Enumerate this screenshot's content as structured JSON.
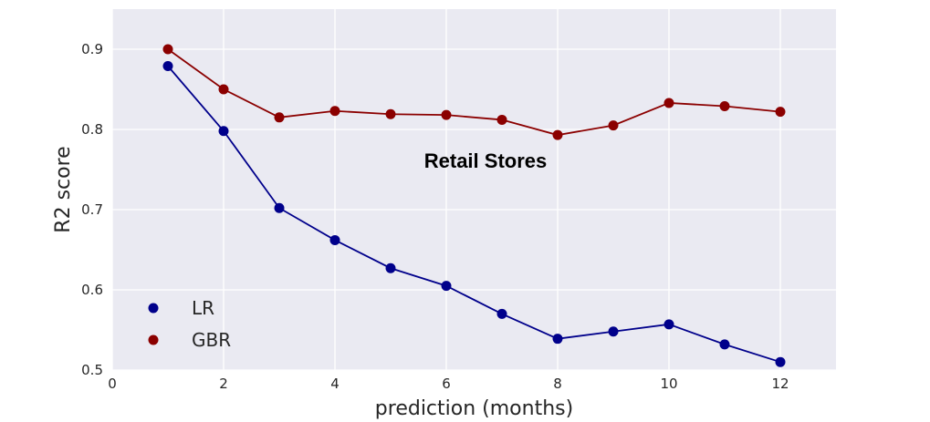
{
  "chart_data": {
    "type": "line",
    "title": "",
    "annotation": "Retail Stores",
    "xlabel": "prediction (months)",
    "ylabel": "R2 score",
    "xlim": [
      0,
      13
    ],
    "ylim": [
      0.5,
      0.95
    ],
    "xticks": [
      0,
      2,
      4,
      6,
      8,
      10,
      12
    ],
    "yticks": [
      0.5,
      0.6,
      0.7,
      0.8,
      0.9
    ],
    "ytick_labels": [
      "0.5",
      "0.6",
      "0.7",
      "0.8",
      "0.9"
    ],
    "grid": true,
    "legend_position": "lower-left",
    "background": "#eaeaf2",
    "x": [
      1,
      2,
      3,
      4,
      5,
      6,
      7,
      8,
      9,
      10,
      11,
      12
    ],
    "series": [
      {
        "name": "LR",
        "color": "#00008b",
        "values": [
          0.879,
          0.798,
          0.702,
          0.662,
          0.627,
          0.605,
          0.57,
          0.539,
          0.548,
          0.557,
          0.532,
          0.51
        ]
      },
      {
        "name": "GBR",
        "color": "#8b0000",
        "values": [
          0.9,
          0.85,
          0.815,
          0.823,
          0.819,
          0.818,
          0.812,
          0.793,
          0.805,
          0.833,
          0.829,
          0.822
        ]
      }
    ]
  }
}
